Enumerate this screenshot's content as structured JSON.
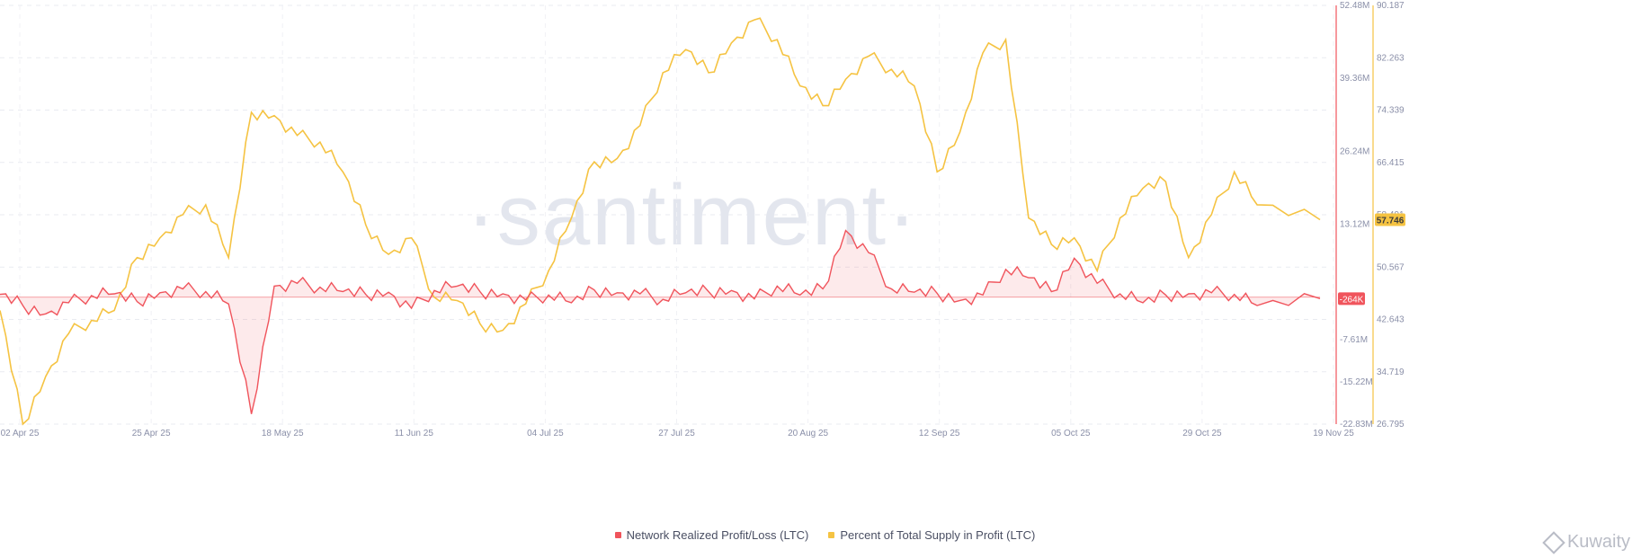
{
  "chart_data": {
    "type": "line",
    "title": "",
    "watermark": "·santiment·",
    "x_labels": [
      "02 Apr 25",
      "25 Apr 25",
      "18 May 25",
      "11 Jun 25",
      "04 Jul 25",
      "27 Jul 25",
      "20 Aug 25",
      "12 Sep 25",
      "05 Oct 25",
      "29 Oct 25",
      "19 Nov 25"
    ],
    "x_range": [
      "2025-04-02",
      "2025-11-19"
    ],
    "axis_left": {
      "series": "Network Realized Profit/Loss (LTC)",
      "ticks": [
        "52.48M",
        "39.36M",
        "26.24M",
        "13.12M",
        "-7.61M",
        "-15.22M",
        "-22.83M"
      ],
      "tick_values": [
        52.48,
        39.36,
        26.24,
        13.12,
        -7.61,
        -15.22,
        -22.83
      ],
      "ylim": [
        -22.83,
        52.48
      ],
      "last_value_label": "-264K",
      "unit": "M"
    },
    "axis_right": {
      "series": "Percent of Total Supply in Profit (LTC)",
      "ticks": [
        "90.187",
        "82.263",
        "74.339",
        "66.415",
        "58.491",
        "50.567",
        "42.643",
        "34.719",
        "26.795"
      ],
      "tick_values": [
        90.187,
        82.263,
        74.339,
        66.415,
        58.491,
        50.567,
        42.643,
        34.719,
        26.795
      ],
      "ylim": [
        26.795,
        90.187
      ],
      "last_value_label": "57.746"
    },
    "grid": true,
    "legend_position": "bottom-center",
    "series": [
      {
        "name": "Network Realized Profit/Loss (LTC)",
        "color": "#f0545c",
        "fill": "rgba(240,84,92,0.12)",
        "points_days": [
          0,
          4,
          8,
          12,
          16,
          20,
          24,
          28,
          32,
          36,
          40,
          44,
          48,
          52,
          56,
          60,
          64,
          68,
          72,
          76,
          80,
          84,
          88,
          92,
          96,
          100,
          104,
          108,
          112,
          116,
          120,
          124,
          128,
          132,
          136,
          140,
          144,
          148,
          152,
          156,
          160,
          164,
          168,
          172,
          176,
          180,
          184,
          188,
          192,
          196,
          200,
          204,
          208,
          212,
          216,
          220,
          231
        ],
        "points_values": [
          0.5,
          -1.5,
          -3.0,
          -1.0,
          0.3,
          0.6,
          -0.8,
          0.8,
          1.5,
          1.0,
          -1.2,
          -21.0,
          2.0,
          2.5,
          1.8,
          1.0,
          0.5,
          0.9,
          -2.0,
          1.2,
          2.0,
          1.0,
          0.6,
          -0.5,
          0.4,
          -1.0,
          1.3,
          0.8,
          0.6,
          -0.4,
          0.8,
          1.0,
          1.2,
          -0.3,
          2.0,
          0.4,
          1.5,
          12.0,
          8.0,
          1.5,
          0.9,
          0.7,
          -0.6,
          0.4,
          5.0,
          3.5,
          1.0,
          7.0,
          2.5,
          0.6,
          -1.0,
          0.4,
          0.6,
          0.8,
          0.5,
          -1.5,
          -0.26
        ]
      },
      {
        "name": "Percent of Total Supply in Profit (LTC)",
        "color": "#f5c342",
        "points_days": [
          0,
          4,
          8,
          12,
          16,
          20,
          24,
          28,
          32,
          36,
          40,
          44,
          48,
          52,
          56,
          60,
          64,
          68,
          72,
          76,
          80,
          84,
          88,
          92,
          96,
          100,
          104,
          108,
          112,
          116,
          120,
          124,
          128,
          132,
          136,
          140,
          144,
          148,
          152,
          156,
          160,
          164,
          168,
          172,
          176,
          180,
          184,
          188,
          192,
          196,
          200,
          204,
          208,
          212,
          216,
          220,
          231
        ],
        "points_values": [
          44.0,
          26.8,
          34.0,
          40.5,
          42.5,
          44.0,
          52.0,
          55.0,
          58.5,
          60.0,
          52.0,
          74.0,
          73.5,
          70.5,
          69.5,
          65.0,
          57.0,
          52.5,
          55.0,
          46.0,
          45.5,
          42.0,
          41.0,
          45.0,
          50.0,
          58.0,
          66.5,
          67.0,
          72.0,
          80.0,
          83.5,
          80.0,
          84.5,
          88.0,
          85.0,
          78.0,
          75.0,
          79.0,
          82.5,
          80.5,
          78.0,
          65.0,
          71.0,
          83.0,
          85.0,
          58.0,
          54.0,
          55.0,
          50.0,
          58.0,
          62.5,
          63.5,
          52.0,
          58.5,
          65.0,
          60.0,
          57.746
        ]
      }
    ]
  },
  "legend": {
    "items": [
      {
        "label": "Network Realized Profit/Loss (LTC)",
        "color": "#f0545c"
      },
      {
        "label": "Percent of Total Supply in Profit (LTC)",
        "color": "#f5c342"
      }
    ]
  },
  "brand": {
    "text": "Kuwaity"
  }
}
